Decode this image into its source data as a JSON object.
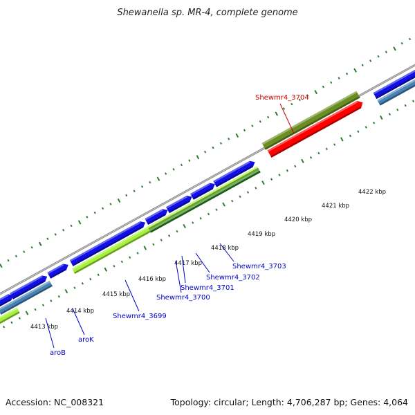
{
  "title": "Shewanella sp. MR-4, complete genome",
  "footer": {
    "accession": "Accession: NC_008321",
    "summary": "Topology: circular; Length: 4,706,287 bp; Genes: 4,064"
  },
  "colors": {
    "backbone": "#8c8c8c",
    "tick": "#2e7d2e",
    "cds_forward": "#1010e6",
    "cds_reverse": "#4682b4",
    "gene_lightgreen": "#a6f23a",
    "gene_darkgreen": "#2f8a22",
    "gene_olive": "#6b8e23",
    "gene_red": "#ff0000",
    "label_blue": "#0000cc",
    "label_red": "#cc0000"
  },
  "ruler_labels": [
    "4413 kbp",
    "4414 kbp",
    "4415 kbp",
    "4416 kbp",
    "4417 kbp",
    "4418 kbp",
    "4419 kbp",
    "4420 kbp",
    "4421 kbp",
    "4422 kbp"
  ],
  "gene_labels": [
    {
      "text": "aroB",
      "color": "#0000cc"
    },
    {
      "text": "aroK",
      "color": "#0000cc"
    },
    {
      "text": "Shewmr4_3699",
      "color": "#0000cc"
    },
    {
      "text": "Shewmr4_3700",
      "color": "#0000cc"
    },
    {
      "text": "Shewmr4_3701",
      "color": "#0000cc"
    },
    {
      "text": "Shewmr4_3702",
      "color": "#0000cc"
    },
    {
      "text": "Shewmr4_3703",
      "color": "#0000cc"
    },
    {
      "text": "Shewmr4_3704",
      "color": "#cc0000"
    }
  ]
}
